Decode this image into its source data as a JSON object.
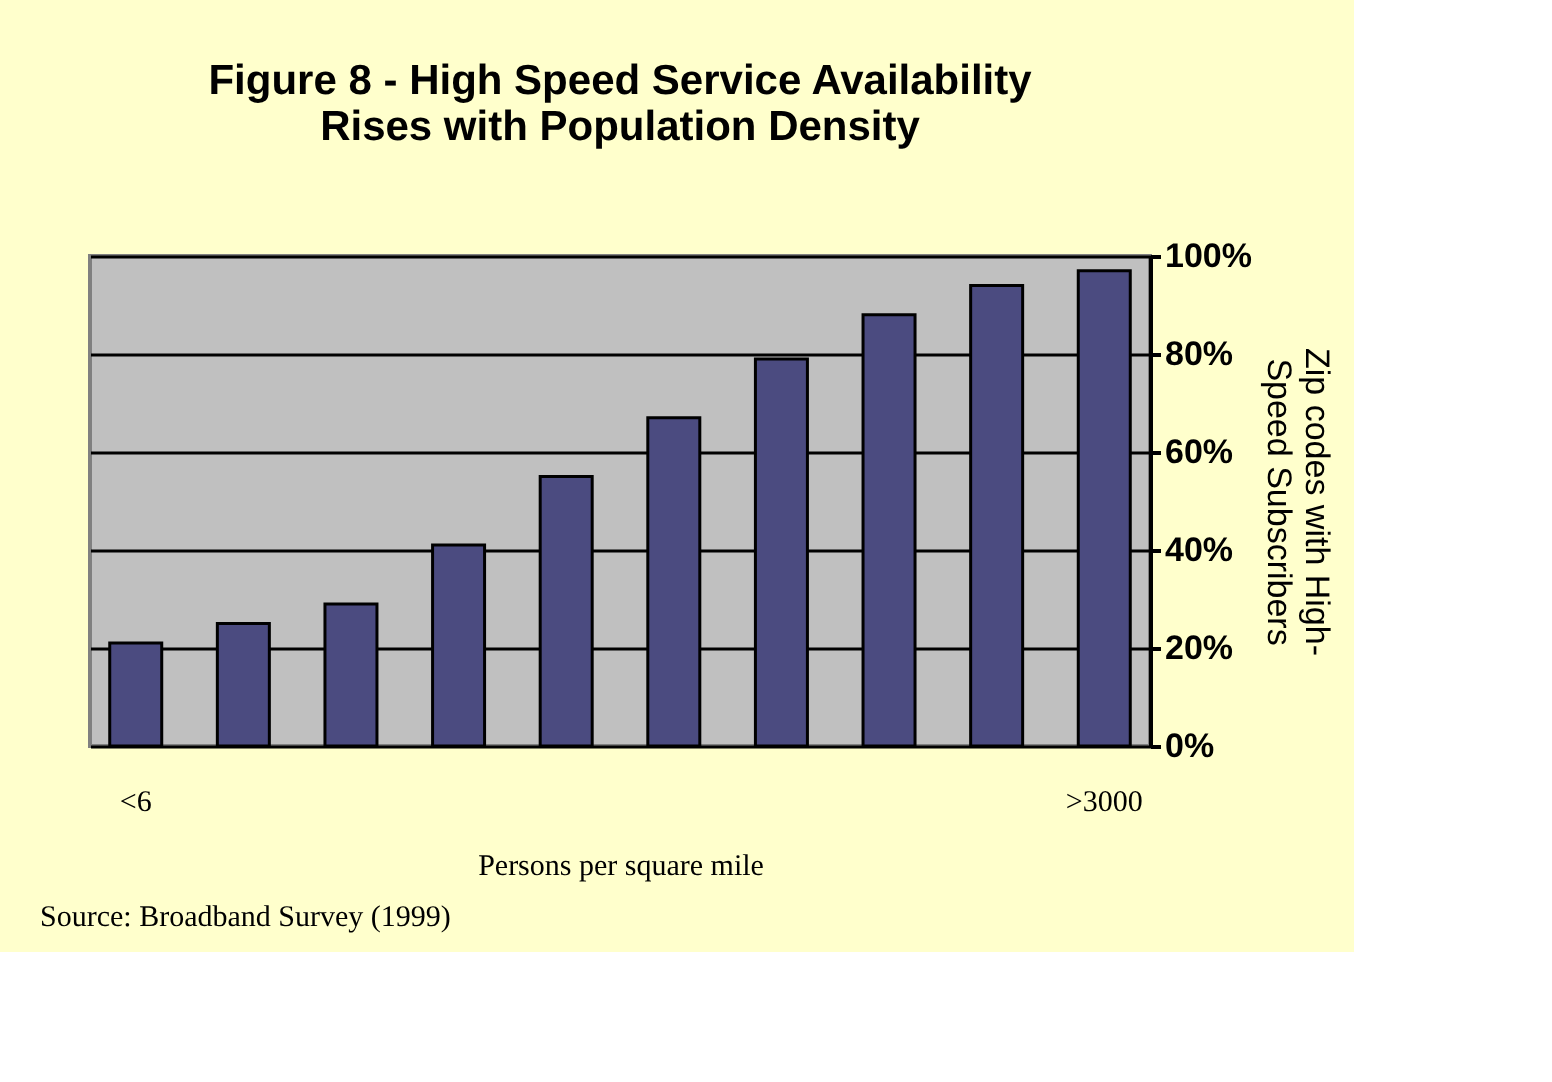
{
  "chart_data": {
    "type": "bar",
    "title": "Figure 8 -  High Speed Service Availability\nRises with Population Density",
    "categories": [
      "<6",
      null,
      null,
      null,
      null,
      null,
      null,
      null,
      null,
      ">3000"
    ],
    "values": [
      21,
      25,
      29,
      41,
      55,
      67,
      79,
      88,
      94,
      97
    ],
    "color": "#4b4b80",
    "xlabel": "Persons per square mile",
    "ylabel": "Zip codes with High-\nSpeed Subscribers",
    "ylim": [
      0,
      100
    ],
    "yticks": [
      {
        "value": 0,
        "label": "0%"
      },
      {
        "value": 20,
        "label": "20%"
      },
      {
        "value": 40,
        "label": "40%"
      },
      {
        "value": 60,
        "label": "60%"
      },
      {
        "value": 80,
        "label": "80%"
      },
      {
        "value": 100,
        "label": "100%"
      }
    ],
    "grid": "y",
    "annotations": [
      "Source: Broadband Survey (1999)"
    ]
  }
}
